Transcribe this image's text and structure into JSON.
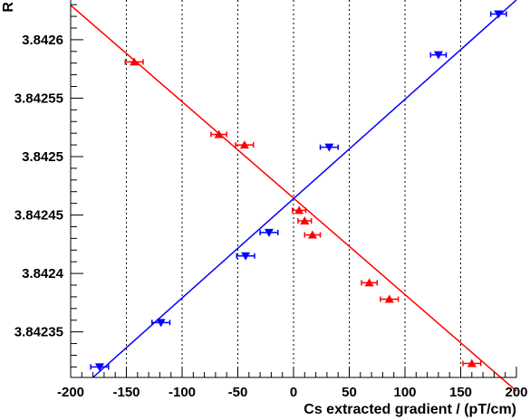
{
  "chart_data": {
    "type": "scatter",
    "title": "",
    "xlabel": "Cs extracted gradient / (pT/cm)",
    "ylabel": "R",
    "xlim": [
      -200,
      200
    ],
    "ylim": [
      3.842311,
      3.842634
    ],
    "x_ticks": [
      -200,
      -150,
      -100,
      -50,
      0,
      50,
      100,
      150,
      200
    ],
    "y_ticks": [
      3.84235,
      3.8424,
      3.84245,
      3.8425,
      3.84255,
      3.8426
    ],
    "x_tick_labels": [
      "-200",
      "-150",
      "-100",
      "-50",
      "0",
      "50",
      "100",
      "150",
      "200"
    ],
    "y_tick_labels": [
      "3.84235",
      "3.8424",
      "3.84245",
      "3.8425",
      "3.84255",
      "3.8426"
    ],
    "grid": "vertical dotted",
    "legend": "none",
    "series": [
      {
        "color": "#ff0000",
        "marker": "triangle-up",
        "points": [
          {
            "x": -143,
            "y": 3.842581,
            "xerr": 8
          },
          {
            "x": -67,
            "y": 3.842519,
            "xerr": 7
          },
          {
            "x": -44,
            "y": 3.84251,
            "xerr": 8
          },
          {
            "x": 5,
            "y": 3.842454,
            "xerr": 6
          },
          {
            "x": 10,
            "y": 3.842445,
            "xerr": 6
          },
          {
            "x": 17,
            "y": 3.842433,
            "xerr": 7
          },
          {
            "x": 68,
            "y": 3.842392,
            "xerr": 7
          },
          {
            "x": 86,
            "y": 3.842378,
            "xerr": 8
          },
          {
            "x": 160,
            "y": 3.842323,
            "xerr": 8
          }
        ],
        "fit": {
          "x1": -200,
          "y1": 3.8426295,
          "x2": 200,
          "y2": 3.8422994
        }
      },
      {
        "color": "#0000ff",
        "marker": "triangle-down",
        "points": [
          {
            "x": -174,
            "y": 3.84232,
            "xerr": 8
          },
          {
            "x": -119,
            "y": 3.842358,
            "xerr": 8
          },
          {
            "x": -43,
            "y": 3.842415,
            "xerr": 8
          },
          {
            "x": -22,
            "y": 3.842435,
            "xerr": 8
          },
          {
            "x": 32,
            "y": 3.842508,
            "xerr": 8
          },
          {
            "x": 130,
            "y": 3.842587,
            "xerr": 7
          },
          {
            "x": 184,
            "y": 3.842622,
            "xerr": 7
          }
        ],
        "fit": {
          "x1": -180,
          "y1": 3.842311,
          "x2": 200,
          "y2": 3.842634
        }
      }
    ]
  }
}
